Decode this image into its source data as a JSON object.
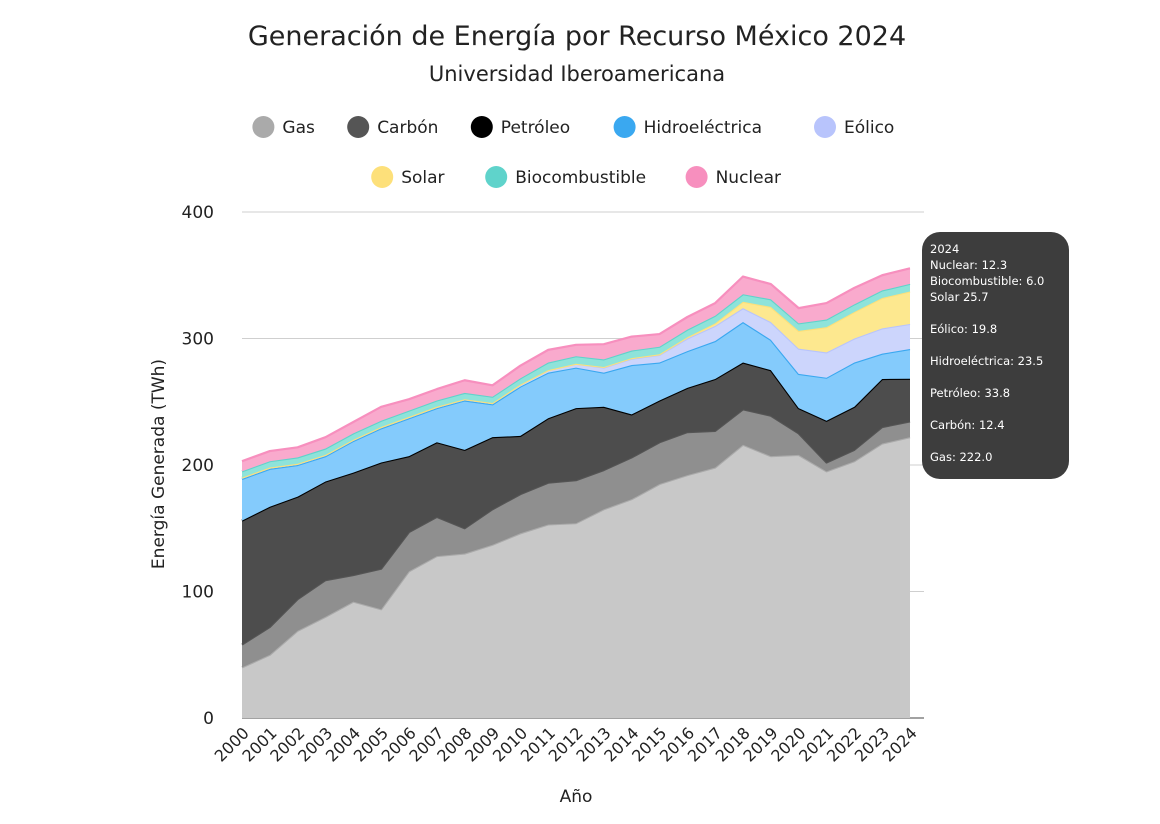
{
  "chart_data": {
    "type": "area",
    "stacked": true,
    "title": "Generación de Energía por Recurso México 2024",
    "subtitle": "Universidad Iberoamericana",
    "xlabel": "Año",
    "ylabel": "Energía Generada (TWh)",
    "ylim": [
      0,
      400
    ],
    "yticks": [
      0,
      100,
      200,
      300,
      400
    ],
    "grid": true,
    "legend_position": "top",
    "x": [
      "2000",
      "2001",
      "2002",
      "2003",
      "2004",
      "2005",
      "2006",
      "2007",
      "2008",
      "2009",
      "2010",
      "2011",
      "2012",
      "2013",
      "2014",
      "2015",
      "2016",
      "2017",
      "2018",
      "2019",
      "2020",
      "2021",
      "2022",
      "2023",
      "2024"
    ],
    "series": [
      {
        "name": "Gas",
        "color": "#aaaaaa",
        "fill": "#c8c8c8",
        "values": [
          40,
          50,
          69,
          80,
          92,
          86,
          116,
          128,
          130,
          137,
          146,
          153,
          154,
          165,
          173,
          185,
          192,
          198,
          216,
          207,
          208,
          195,
          203,
          217,
          222.0
        ]
      },
      {
        "name": "Carbón",
        "color": "#555555",
        "fill": "#8f8f8f",
        "values": [
          18,
          22,
          25,
          29,
          21,
          32,
          31,
          31,
          20,
          28,
          31,
          33,
          34,
          31,
          33,
          33,
          34,
          29,
          28,
          32,
          17,
          7,
          9,
          13,
          12.4
        ]
      },
      {
        "name": "Petróleo",
        "color": "#000000",
        "fill": "#4d4d4d",
        "values": [
          98,
          95,
          81,
          78,
          81,
          84,
          60,
          59,
          62,
          57,
          46,
          51,
          57,
          50,
          34,
          33,
          35,
          41,
          37,
          36,
          20,
          33,
          34,
          38,
          33.8
        ]
      },
      {
        "name": "Hidroeléctrica",
        "color": "#3aa8f0",
        "fill": "#84cbfc",
        "values": [
          33,
          30,
          25,
          20,
          25,
          27,
          30,
          27,
          39,
          26,
          39,
          36,
          32,
          27,
          39,
          30,
          29,
          30,
          32,
          24,
          27,
          34,
          35,
          20,
          23.5
        ]
      },
      {
        "name": "Eólico",
        "color": "#b8c4fc",
        "fill": "#ccd5fc",
        "values": [
          1,
          1,
          1,
          1,
          1,
          1,
          1,
          1,
          1,
          1,
          1.5,
          2,
          3,
          4,
          5,
          6,
          10,
          12,
          11,
          14,
          20,
          20,
          19,
          20,
          19.8
        ]
      },
      {
        "name": "Solar",
        "color": "#fde07a",
        "fill": "#fde88f",
        "values": [
          0,
          0,
          0,
          0,
          0,
          0,
          0,
          0,
          0,
          0,
          0,
          0,
          0,
          0.5,
          0.5,
          0.5,
          1,
          2,
          5,
          12,
          14,
          20,
          21,
          24,
          25.7
        ]
      },
      {
        "name": "Biocombustible",
        "color": "#5fd3cb",
        "fill": "#8ee3da",
        "values": [
          5,
          5,
          5,
          5,
          5,
          5,
          5,
          5,
          5,
          5,
          5,
          6,
          6,
          6,
          6,
          6,
          6,
          6,
          6,
          6,
          6,
          6,
          6,
          6,
          6.0
        ]
      },
      {
        "name": "Nuclear",
        "color": "#f78fbe",
        "fill": "#f9aacd",
        "values": [
          8,
          8,
          8,
          9,
          9,
          11,
          9,
          9,
          10,
          9,
          10,
          10,
          9,
          12,
          11,
          10,
          10,
          10,
          14,
          12,
          12,
          13,
          13,
          12,
          12.3
        ]
      }
    ],
    "tooltip": {
      "title": "2024",
      "lines": [
        "Nuclear: 12.3",
        "Biocombustible: 6.0",
        "Solar 25.7",
        "Eólico: 19.8",
        "Hidroeléctrica: 23.5",
        "Petróleo: 33.8",
        "Carbón: 12.4",
        "Gas: 222.0"
      ]
    }
  }
}
